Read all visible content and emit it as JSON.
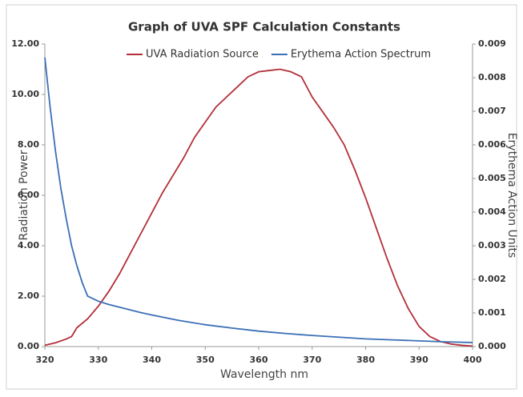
{
  "chart_data": {
    "type": "line",
    "title": "Graph of UVA SPF Calculation Constants",
    "xlabel": "Wavelength nm",
    "ylabel": "Radiation Power",
    "y2label": "Erythema Action Units",
    "legend": "top",
    "grid": false,
    "xlim": [
      320,
      400
    ],
    "xticks": [
      320,
      330,
      340,
      350,
      360,
      370,
      380,
      390,
      400
    ],
    "ylim": [
      0,
      12
    ],
    "yticks": [
      {
        "value": 0,
        "label": "0.00"
      },
      {
        "value": 2,
        "label": "2.00"
      },
      {
        "value": 4,
        "label": "4.00"
      },
      {
        "value": 6,
        "label": "6.00"
      },
      {
        "value": 8,
        "label": "8.00"
      },
      {
        "value": 10,
        "label": "10.00"
      },
      {
        "value": 12,
        "label": "12.00"
      }
    ],
    "y2lim": [
      0,
      0.009
    ],
    "y2ticks": [
      {
        "value": 0,
        "label": "0.000"
      },
      0.001,
      0.002,
      0.003,
      0.004,
      0.005,
      0.006,
      0.007,
      0.008,
      0.009
    ],
    "series": [
      {
        "name": "UVA Radiation Source",
        "color": "#b22f3a",
        "x": [
          320,
          322,
          324,
          325,
          326,
          328,
          330,
          332,
          334,
          336,
          338,
          340,
          342,
          344,
          346,
          348,
          350,
          352,
          354,
          356,
          358,
          360,
          362,
          364,
          366,
          368,
          370,
          372,
          374,
          376,
          378,
          380,
          382,
          384,
          386,
          388,
          390,
          392,
          394,
          396,
          398,
          400
        ],
        "values": [
          0.05,
          0.15,
          0.3,
          0.4,
          0.75,
          1.1,
          1.6,
          2.2,
          2.9,
          3.7,
          4.5,
          5.3,
          6.1,
          6.8,
          7.5,
          8.3,
          8.9,
          9.5,
          9.9,
          10.3,
          10.7,
          10.9,
          10.95,
          11.0,
          10.9,
          10.7,
          9.9,
          9.3,
          8.7,
          8.0,
          7.0,
          5.9,
          4.7,
          3.5,
          2.4,
          1.5,
          0.8,
          0.4,
          0.2,
          0.1,
          0.05,
          0.02
        ]
      },
      {
        "name": "Erythema Action Spectrum",
        "color": "#3b6fb6",
        "axis": "y2",
        "x": [
          320,
          321,
          322,
          323,
          324,
          325,
          326,
          327,
          328,
          330,
          332,
          334,
          336,
          338,
          340,
          345,
          350,
          355,
          360,
          365,
          370,
          375,
          380,
          385,
          390,
          395,
          400
        ],
        "values": [
          0.0086,
          0.0071,
          0.0058,
          0.0047,
          0.0038,
          0.003,
          0.0024,
          0.0019,
          0.0015,
          0.00135,
          0.00125,
          0.00117,
          0.00109,
          0.00101,
          0.00094,
          0.00078,
          0.00065,
          0.00055,
          0.00046,
          0.00039,
          0.00033,
          0.00028,
          0.00023,
          0.0002,
          0.00017,
          0.00014,
          0.00012
        ]
      }
    ]
  }
}
